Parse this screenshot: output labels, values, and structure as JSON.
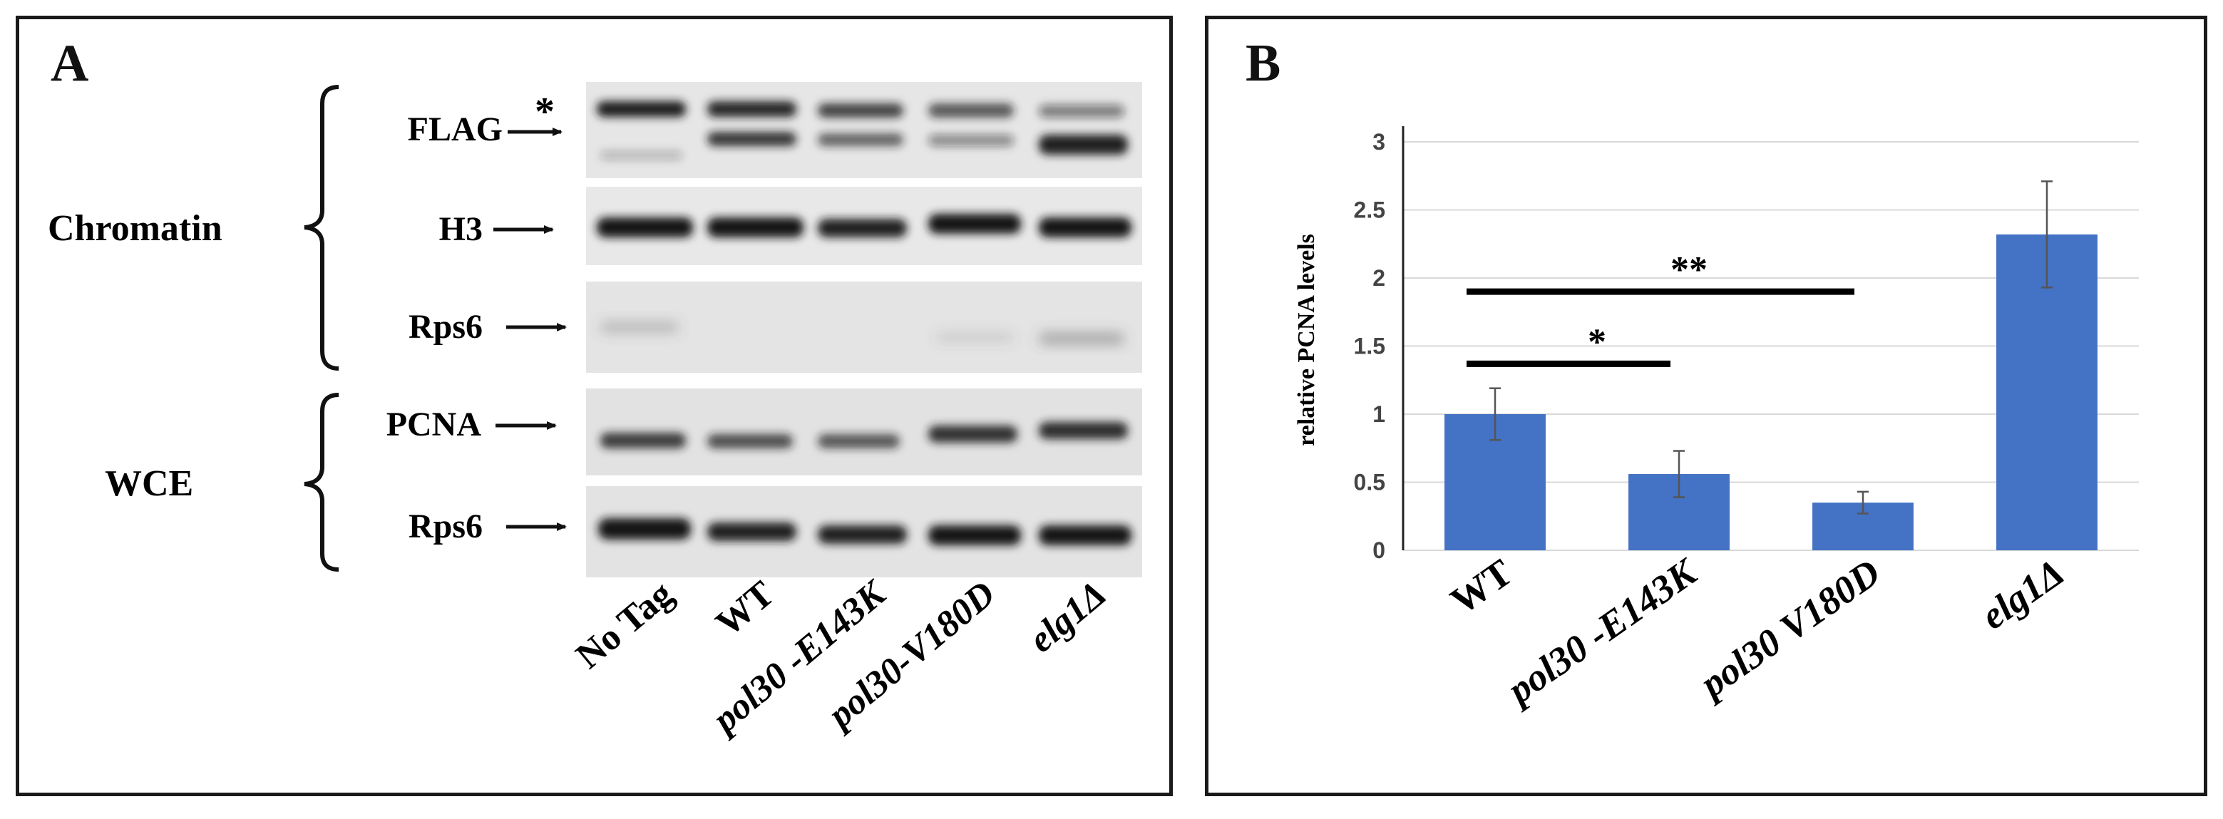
{
  "panel_a": {
    "letter": "A",
    "chromatin_label": "Chromatin",
    "wce_label": "WCE",
    "star": "*",
    "blots": [
      {
        "label": "FLAG"
      },
      {
        "label": "H3"
      },
      {
        "label": "Rps6"
      },
      {
        "label": "PCNA"
      },
      {
        "label": "Rps6"
      }
    ],
    "lanes": [
      {
        "label": "No Tag",
        "italic": false
      },
      {
        "label": "WT",
        "italic": false
      },
      {
        "label": "pol30 -E143K",
        "italic": true
      },
      {
        "label": "pol30-V180D",
        "italic": true
      },
      {
        "label": "elg1Δ",
        "italic": true
      }
    ]
  },
  "panel_b": {
    "letter": "B",
    "significance": [
      {
        "label": "**",
        "from": "WT",
        "to": "pol30 V180D"
      },
      {
        "label": "*",
        "from": "WT",
        "to": "pol30 -E143K"
      }
    ]
  },
  "chart_data": {
    "type": "bar",
    "categories": [
      "WT",
      "pol30 -E143K",
      "pol30 V180D",
      "elg1Δ"
    ],
    "category_italic": [
      false,
      true,
      true,
      true
    ],
    "values": [
      1.0,
      0.56,
      0.35,
      2.32
    ],
    "error": [
      0.19,
      0.17,
      0.08,
      0.39
    ],
    "ylabel": "relative PCNA levels",
    "ylim": [
      0,
      3
    ],
    "yticks": [
      "0",
      "0.5",
      "1",
      "1.5",
      "2",
      "2.5",
      "3"
    ],
    "ytick_values": [
      0,
      0.5,
      1,
      1.5,
      2,
      2.5,
      3
    ],
    "bar_color": "#4472c4",
    "grid": true
  }
}
